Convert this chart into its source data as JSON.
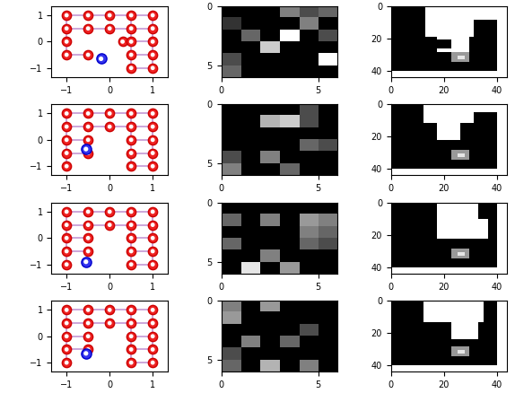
{
  "nrows": 4,
  "ncols": 3,
  "fig_width": 5.74,
  "fig_height": 4.48,
  "dpi": 100,
  "scatter_xlim": [
    -1.35,
    1.35
  ],
  "scatter_ylim": [
    -1.35,
    1.35
  ],
  "scatter_xticks": [
    -1,
    0,
    1
  ],
  "scatter_yticks": [
    -1,
    0,
    1
  ],
  "img1_xticks": [
    0,
    5
  ],
  "img1_yticks": [
    0,
    5
  ],
  "img2_xticks": [
    0,
    20,
    40
  ],
  "img2_yticks": [
    0,
    20,
    40
  ],
  "line_color": "#c090d0",
  "red_face": "#ee2222",
  "red_edge": "#cc0000",
  "white_dot": "#ffffff",
  "blue_face": "#3333ee",
  "blue_edge": "#0000cc",
  "tick_fontsize": 7,
  "scatter_configs": [
    {
      "points": [
        [
          -1.0,
          1.0
        ],
        [
          -0.5,
          1.0
        ],
        [
          0.0,
          1.0
        ],
        [
          0.5,
          1.0
        ],
        [
          1.0,
          1.0
        ],
        [
          -1.0,
          0.5
        ],
        [
          -0.5,
          0.5
        ],
        [
          0.0,
          0.5
        ],
        [
          0.5,
          0.5
        ],
        [
          1.0,
          0.5
        ],
        [
          -1.0,
          0.0
        ],
        [
          0.3,
          0.0
        ],
        [
          0.5,
          0.0
        ],
        [
          1.0,
          0.0
        ],
        [
          -1.0,
          -0.5
        ],
        [
          -0.5,
          -0.5
        ],
        [
          0.5,
          -0.5
        ],
        [
          1.0,
          -0.5
        ],
        [
          0.5,
          -1.0
        ],
        [
          1.0,
          -1.0
        ]
      ],
      "blue": [
        -0.2,
        -0.65
      ],
      "hlines": [
        [
          -1.0,
          1.0,
          1.0
        ],
        [
          -1.0,
          1.0,
          0.5
        ],
        [
          0.3,
          1.0,
          0.0
        ],
        [
          -1.0,
          -0.5,
          -0.5
        ],
        [
          0.5,
          1.0,
          -0.5
        ],
        [
          0.5,
          1.0,
          -1.0
        ]
      ],
      "vlines": [
        [
          -1.0,
          1.0,
          -0.5
        ],
        [
          1.0,
          1.0,
          -1.0
        ],
        [
          0.5,
          1.0,
          -1.0
        ]
      ]
    },
    {
      "points": [
        [
          -1.0,
          1.0
        ],
        [
          -0.5,
          1.0
        ],
        [
          0.0,
          1.0
        ],
        [
          0.5,
          1.0
        ],
        [
          1.0,
          1.0
        ],
        [
          -1.0,
          0.5
        ],
        [
          -0.5,
          0.5
        ],
        [
          0.0,
          0.5
        ],
        [
          0.5,
          0.5
        ],
        [
          1.0,
          0.5
        ],
        [
          -1.0,
          0.0
        ],
        [
          -0.5,
          0.0
        ],
        [
          0.5,
          0.0
        ],
        [
          1.0,
          0.0
        ],
        [
          -1.0,
          -0.5
        ],
        [
          -0.5,
          -0.5
        ],
        [
          0.5,
          -0.5
        ],
        [
          1.0,
          -0.5
        ],
        [
          -1.0,
          -1.0
        ],
        [
          0.5,
          -1.0
        ],
        [
          1.0,
          -1.0
        ]
      ],
      "blue": [
        -0.55,
        -0.35
      ],
      "hlines": [
        [
          -1.0,
          1.0,
          1.0
        ],
        [
          -1.0,
          1.0,
          0.5
        ],
        [
          -1.0,
          -0.5,
          0.0
        ],
        [
          0.5,
          1.0,
          0.0
        ],
        [
          -1.0,
          -0.5,
          -0.5
        ],
        [
          0.5,
          1.0,
          -0.5
        ],
        [
          0.5,
          1.0,
          -1.0
        ]
      ],
      "vlines": [
        [
          -1.0,
          1.0,
          -1.0
        ],
        [
          1.0,
          1.0,
          -1.0
        ],
        [
          0.5,
          1.0,
          -1.0
        ]
      ]
    },
    {
      "points": [
        [
          -1.0,
          1.0
        ],
        [
          -0.5,
          1.0
        ],
        [
          0.0,
          1.0
        ],
        [
          0.5,
          1.0
        ],
        [
          1.0,
          1.0
        ],
        [
          -1.0,
          0.5
        ],
        [
          -0.5,
          0.5
        ],
        [
          0.0,
          0.5
        ],
        [
          0.5,
          0.5
        ],
        [
          1.0,
          0.5
        ],
        [
          -1.0,
          0.0
        ],
        [
          -0.5,
          0.0
        ],
        [
          0.5,
          0.0
        ],
        [
          1.0,
          0.0
        ],
        [
          -1.0,
          -0.5
        ],
        [
          -0.5,
          -0.5
        ],
        [
          0.5,
          -0.5
        ],
        [
          1.0,
          -0.5
        ],
        [
          -1.0,
          -1.0
        ],
        [
          0.5,
          -1.0
        ],
        [
          1.0,
          -1.0
        ]
      ],
      "blue": [
        -0.55,
        -0.9
      ],
      "hlines": [
        [
          -1.0,
          1.0,
          1.0
        ],
        [
          -1.0,
          1.0,
          0.5
        ],
        [
          -1.0,
          -0.5,
          0.0
        ],
        [
          0.5,
          1.0,
          0.0
        ],
        [
          -1.0,
          -0.5,
          -0.5
        ],
        [
          0.5,
          1.0,
          -0.5
        ],
        [
          0.5,
          1.0,
          -1.0
        ]
      ],
      "vlines": [
        [
          -1.0,
          1.0,
          -1.0
        ],
        [
          1.0,
          1.0,
          -1.0
        ],
        [
          0.5,
          1.0,
          -1.0
        ]
      ]
    },
    {
      "points": [
        [
          -1.0,
          1.0
        ],
        [
          -0.5,
          1.0
        ],
        [
          0.0,
          1.0
        ],
        [
          0.5,
          1.0
        ],
        [
          1.0,
          1.0
        ],
        [
          -1.0,
          0.5
        ],
        [
          -0.5,
          0.5
        ],
        [
          0.0,
          0.5
        ],
        [
          0.5,
          0.5
        ],
        [
          1.0,
          0.5
        ],
        [
          -1.0,
          0.0
        ],
        [
          -0.5,
          0.0
        ],
        [
          0.5,
          0.0
        ],
        [
          1.0,
          0.0
        ],
        [
          -1.0,
          -0.5
        ],
        [
          -0.5,
          -0.5
        ],
        [
          0.5,
          -0.5
        ],
        [
          1.0,
          -0.5
        ],
        [
          -1.0,
          -1.0
        ],
        [
          0.5,
          -1.0
        ],
        [
          1.0,
          -1.0
        ]
      ],
      "blue": [
        -0.55,
        -0.65
      ],
      "hlines": [
        [
          -1.0,
          1.0,
          1.0
        ],
        [
          -1.0,
          1.0,
          0.5
        ],
        [
          -1.0,
          -0.5,
          0.0
        ],
        [
          0.5,
          1.0,
          0.0
        ],
        [
          -1.0,
          -0.5,
          -0.5
        ],
        [
          0.5,
          1.0,
          -0.5
        ],
        [
          0.5,
          1.0,
          -1.0
        ]
      ],
      "vlines": [
        [
          -1.0,
          1.0,
          -1.0
        ],
        [
          1.0,
          1.0,
          -1.0
        ],
        [
          0.5,
          1.0,
          -1.0
        ]
      ]
    }
  ],
  "img1_rows": [
    [
      [
        0.0,
        0.0,
        0.0,
        0.5,
        0.3,
        0.4
      ],
      [
        0.2,
        0.0,
        0.0,
        0.0,
        0.5,
        0.0
      ],
      [
        0.0,
        0.4,
        0.0,
        1.0,
        0.0,
        0.3
      ],
      [
        0.0,
        0.0,
        0.8,
        0.0,
        0.0,
        0.0
      ],
      [
        0.3,
        0.0,
        0.0,
        0.0,
        0.0,
        1.0
      ],
      [
        0.4,
        0.0,
        0.0,
        0.0,
        0.0,
        0.0
      ]
    ],
    [
      [
        0.0,
        0.0,
        0.0,
        0.0,
        0.3,
        0.0
      ],
      [
        0.0,
        0.0,
        0.7,
        0.8,
        0.3,
        0.0
      ],
      [
        0.0,
        0.0,
        0.0,
        0.0,
        0.0,
        0.0
      ],
      [
        0.0,
        0.0,
        0.0,
        0.0,
        0.4,
        0.3
      ],
      [
        0.3,
        0.0,
        0.5,
        0.0,
        0.0,
        0.0
      ],
      [
        0.5,
        0.0,
        0.0,
        0.4,
        0.0,
        0.0
      ]
    ],
    [
      [
        0.0,
        0.0,
        0.0,
        0.0,
        0.0,
        0.0
      ],
      [
        0.4,
        0.0,
        0.5,
        0.0,
        0.6,
        0.5
      ],
      [
        0.0,
        0.0,
        0.0,
        0.0,
        0.5,
        0.4
      ],
      [
        0.4,
        0.0,
        0.0,
        0.0,
        0.4,
        0.3
      ],
      [
        0.0,
        0.0,
        0.5,
        0.0,
        0.0,
        0.0
      ],
      [
        0.0,
        0.9,
        0.0,
        0.6,
        0.0,
        0.0
      ]
    ],
    [
      [
        0.5,
        0.0,
        0.6,
        0.0,
        0.0,
        0.0
      ],
      [
        0.6,
        0.0,
        0.0,
        0.0,
        0.0,
        0.0
      ],
      [
        0.0,
        0.0,
        0.0,
        0.0,
        0.3,
        0.0
      ],
      [
        0.0,
        0.5,
        0.0,
        0.4,
        0.0,
        0.0
      ],
      [
        0.3,
        0.0,
        0.0,
        0.0,
        0.0,
        0.0
      ],
      [
        0.4,
        0.0,
        0.7,
        0.0,
        0.5,
        0.0
      ]
    ]
  ]
}
